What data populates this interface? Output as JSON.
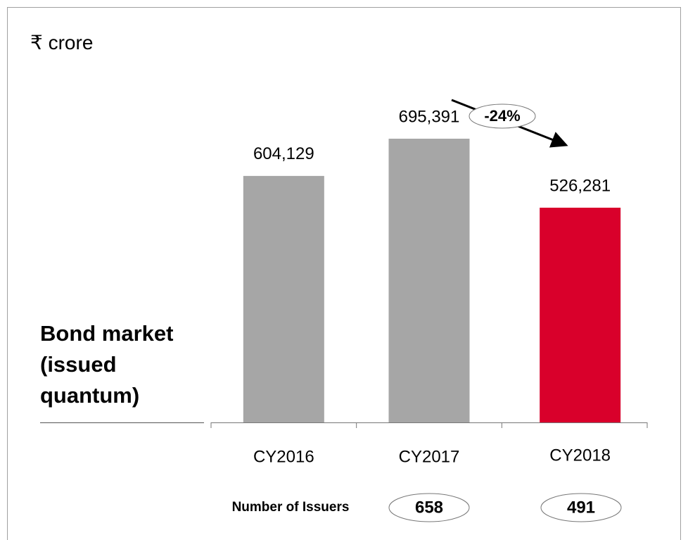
{
  "chart_data": {
    "type": "bar",
    "unit_label": "₹ crore",
    "side_label": "Bond market (issued quantum)",
    "categories": [
      "CY2016",
      "CY2017",
      "CY2018"
    ],
    "values": [
      604129,
      695391,
      526281
    ],
    "value_labels": [
      "604,129",
      "695,391",
      "526,281"
    ],
    "colors": [
      "#a6a6a6",
      "#a6a6a6",
      "#d9002b"
    ],
    "change_label": "-24%",
    "issuers": {
      "label": "Number of Issuers",
      "values": [
        null,
        658,
        491
      ]
    }
  }
}
